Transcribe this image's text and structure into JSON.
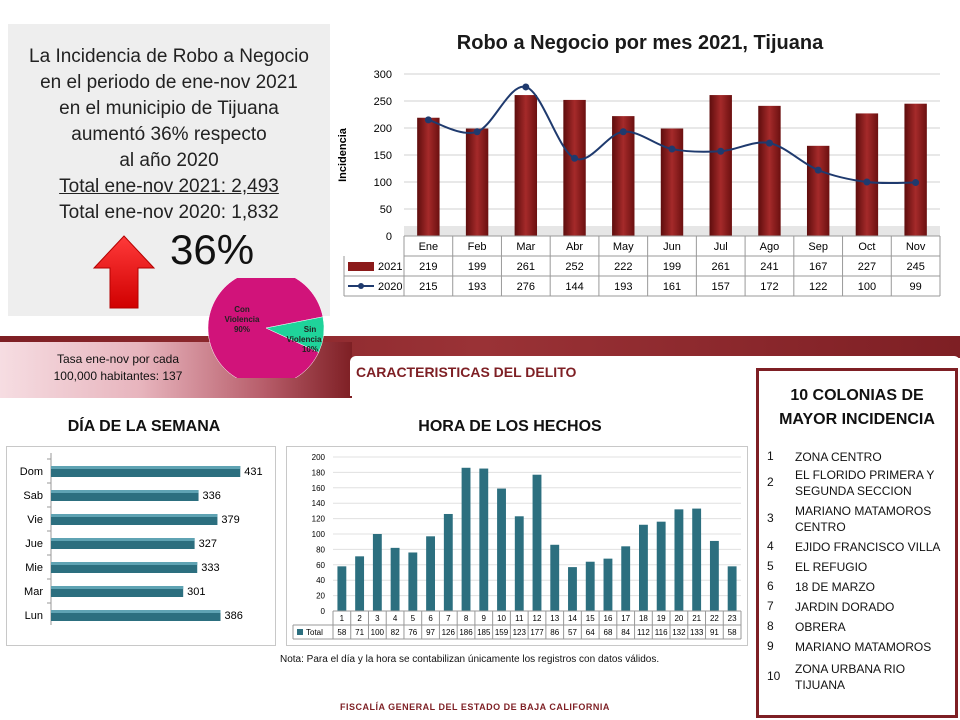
{
  "summary": {
    "line1": "La Incidencia de Robo a Negocio",
    "line2": "en el periodo de ene-nov  2021",
    "line3": "en el municipio de Tijuana",
    "line4": "aumentó 36% respecto",
    "line5": "al año 2020",
    "total_2021": "Total ene-nov 2021:  2,493",
    "total_2020": "Total ene-nov 2020:  1,832",
    "big_percent": "36%",
    "arrow_color": "#ff0000"
  },
  "rate": {
    "line1": "Tasa ene-nov por cada",
    "line2": "100,000  habitantes:  137"
  },
  "sections": {
    "characteristics": "CARACTERISTICAS DEL DELITO",
    "day_of_week": "DÍA DE LA SEMANA",
    "hour": "HORA DE LOS HECHOS"
  },
  "colonias": {
    "title_line1": "10 COLONIAS DE",
    "title_line2": "MAYOR INCIDENCIA",
    "items": [
      {
        "n": "1",
        "name": "ZONA CENTRO"
      },
      {
        "n": "2",
        "name": "EL FLORIDO PRIMERA Y SEGUNDA SECCION"
      },
      {
        "n": "3",
        "name": "MARIANO MATAMOROS CENTRO"
      },
      {
        "n": "4",
        "name": "EJIDO FRANCISCO VILLA"
      },
      {
        "n": "5",
        "name": "EL REFUGIO"
      },
      {
        "n": "6",
        "name": "18 DE MARZO"
      },
      {
        "n": "7",
        "name": "JARDIN DORADO"
      },
      {
        "n": "8",
        "name": "OBRERA"
      },
      {
        "n": "9",
        "name": "MARIANO MATAMOROS"
      },
      {
        "n": "10",
        "name": "ZONA URBANA RIO TIJUANA"
      }
    ]
  },
  "note": "Nota:  Para el día y la hora se contabilizan únicamente los registros con datos válidos.",
  "footer": "FISCALÍA GENERAL DEL ESTADO DE BAJA CALIFORNIA",
  "colors": {
    "brand": "#7e1f24",
    "bar_2021": "#8b1a1a",
    "line_2020": "#1f3a6e",
    "teal": "#2c6f7f",
    "pie_violence": "#d1137a",
    "pie_no_violence": "#1fd39a"
  },
  "chart_data": [
    {
      "type": "bar",
      "title": "Robo a Negocio por mes 2021, Tijuana",
      "ylabel": "Incidencia",
      "xlabel": "",
      "ylim": [
        0,
        300
      ],
      "yticks": [
        0,
        50,
        100,
        150,
        200,
        250,
        300
      ],
      "categories": [
        "Ene",
        "Feb",
        "Mar",
        "Abr",
        "May",
        "Jun",
        "Jul",
        "Ago",
        "Sep",
        "Oct",
        "Nov"
      ],
      "series": [
        {
          "name": "2021",
          "kind": "bar",
          "values": [
            219,
            199,
            261,
            252,
            222,
            199,
            261,
            241,
            167,
            227,
            245
          ]
        },
        {
          "name": "2020",
          "kind": "line",
          "values": [
            215,
            193,
            276,
            144,
            193,
            161,
            157,
            172,
            122,
            100,
            99
          ]
        }
      ],
      "legend": "data-table",
      "grid": true
    },
    {
      "type": "pie",
      "labels": [
        "Con Violencia 90%",
        "Sin Violencia 10%"
      ],
      "values": [
        90,
        10
      ]
    },
    {
      "type": "bar",
      "orientation": "horizontal",
      "categories": [
        "Dom",
        "Sab",
        "Vie",
        "Jue",
        "Mie",
        "Mar",
        "Lun"
      ],
      "values": [
        431,
        336,
        379,
        327,
        333,
        301,
        386
      ],
      "xlim": [
        0,
        460
      ]
    },
    {
      "type": "bar",
      "ylim": [
        0,
        200
      ],
      "yticks": [
        0,
        20,
        40,
        60,
        80,
        100,
        120,
        140,
        160,
        180,
        200
      ],
      "categories": [
        "1",
        "2",
        "3",
        "4",
        "5",
        "6",
        "7",
        "8",
        "9",
        "10",
        "11",
        "12",
        "13",
        "14",
        "15",
        "16",
        "17",
        "18",
        "19",
        "20",
        "21",
        "22",
        "23"
      ],
      "series": [
        {
          "name": "Total",
          "values": [
            58,
            71,
            100,
            82,
            76,
            97,
            126,
            186,
            185,
            159,
            123,
            177,
            86,
            57,
            64,
            68,
            84,
            112,
            116,
            132,
            133,
            91,
            58
          ]
        }
      ],
      "legend": "data-table",
      "grid": true
    }
  ]
}
